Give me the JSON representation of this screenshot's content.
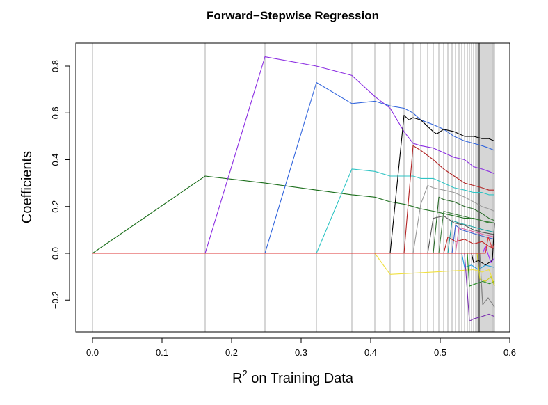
{
  "chart_data": {
    "type": "line",
    "title": "Forward−Stepwise Regression",
    "xlabel_base": "R",
    "xlabel_sup": "2",
    "xlabel_rest": " on Training Data",
    "ylabel": "Coefficients",
    "xlim": [
      0.0,
      0.6
    ],
    "ylim": [
      -0.3,
      0.85
    ],
    "x_ticks": [
      0.0,
      0.1,
      0.2,
      0.3,
      0.4,
      0.5,
      0.6
    ],
    "x_tick_labels": [
      "0.0",
      "0.1",
      "0.2",
      "0.3",
      "0.4",
      "0.5",
      "0.6"
    ],
    "y_ticks": [
      -0.2,
      0.0,
      0.2,
      0.4,
      0.6,
      0.8
    ],
    "y_tick_labels": [
      "−0.2",
      "0.0",
      "0.2",
      "0.4",
      "0.6",
      "0.8"
    ],
    "grid": "vertical lines at each step R²",
    "step_r2": [
      0.0,
      0.162,
      0.248,
      0.322,
      0.373,
      0.406,
      0.428,
      0.448,
      0.461,
      0.472,
      0.482,
      0.49,
      0.498,
      0.505,
      0.511,
      0.517,
      0.522,
      0.527,
      0.531,
      0.535,
      0.539,
      0.542,
      0.545,
      0.548,
      0.551,
      0.553,
      0.555,
      0.557,
      0.559,
      0.561,
      0.563,
      0.565,
      0.567,
      0.569,
      0.571,
      0.573,
      0.575,
      0.576,
      0.577,
      0.578
    ],
    "dark_line_x": 0.556,
    "series": [
      {
        "color": "#1b6e1b",
        "x": [
          0.0,
          0.162,
          0.248,
          0.322,
          0.373,
          0.406,
          0.428,
          0.448,
          0.461,
          0.472,
          0.49,
          0.505,
          0.52,
          0.535,
          0.548,
          0.56,
          0.57,
          0.578
        ],
        "y": [
          0.0,
          0.33,
          0.3,
          0.27,
          0.25,
          0.24,
          0.22,
          0.21,
          0.2,
          0.19,
          0.18,
          0.17,
          0.16,
          0.15,
          0.15,
          0.14,
          0.13,
          0.13
        ]
      },
      {
        "color": "#8a2be2",
        "x": [
          0.0,
          0.162,
          0.248,
          0.322,
          0.373,
          0.406,
          0.428,
          0.448,
          0.461,
          0.472,
          0.49,
          0.505,
          0.52,
          0.535,
          0.548,
          0.56,
          0.57,
          0.578
        ],
        "y": [
          0.0,
          0.0,
          0.84,
          0.8,
          0.76,
          0.67,
          0.62,
          0.52,
          0.47,
          0.46,
          0.45,
          0.43,
          0.41,
          0.4,
          0.37,
          0.36,
          0.35,
          0.34
        ]
      },
      {
        "color": "#3366dd",
        "x": [
          0.0,
          0.248,
          0.322,
          0.373,
          0.406,
          0.428,
          0.448,
          0.461,
          0.472,
          0.49,
          0.505,
          0.52,
          0.535,
          0.548,
          0.56,
          0.57,
          0.578
        ],
        "y": [
          0.0,
          0.0,
          0.73,
          0.64,
          0.65,
          0.63,
          0.62,
          0.6,
          0.57,
          0.55,
          0.53,
          0.5,
          0.48,
          0.47,
          0.46,
          0.45,
          0.44
        ]
      },
      {
        "color": "#2ec4c4",
        "x": [
          0.0,
          0.322,
          0.373,
          0.406,
          0.428,
          0.448,
          0.461,
          0.472,
          0.49,
          0.505,
          0.52,
          0.535,
          0.548,
          0.56,
          0.57,
          0.578
        ],
        "y": [
          0.0,
          0.0,
          0.36,
          0.35,
          0.33,
          0.33,
          0.33,
          0.32,
          0.32,
          0.3,
          0.28,
          0.27,
          0.26,
          0.26,
          0.25,
          0.25
        ]
      },
      {
        "color": "#000000",
        "x": [
          0.0,
          0.428,
          0.448,
          0.455,
          0.461,
          0.472,
          0.49,
          0.495,
          0.505,
          0.52,
          0.535,
          0.548,
          0.56,
          0.57,
          0.578
        ],
        "y": [
          0.0,
          0.0,
          0.59,
          0.57,
          0.58,
          0.57,
          0.52,
          0.51,
          0.53,
          0.52,
          0.5,
          0.5,
          0.49,
          0.49,
          0.48
        ]
      },
      {
        "color": "#b22222",
        "x": [
          0.0,
          0.448,
          0.461,
          0.472,
          0.49,
          0.505,
          0.52,
          0.535,
          0.548,
          0.56,
          0.57,
          0.578
        ],
        "y": [
          0.0,
          0.0,
          0.46,
          0.44,
          0.4,
          0.36,
          0.33,
          0.3,
          0.29,
          0.28,
          0.27,
          0.27
        ]
      },
      {
        "color": "#f0e040",
        "x": [
          0.0,
          0.406,
          0.428,
          0.461,
          0.49,
          0.52,
          0.548,
          0.56,
          0.57,
          0.578
        ],
        "y": [
          0.0,
          0.0,
          -0.09,
          -0.085,
          -0.08,
          -0.075,
          -0.07,
          -0.08,
          -0.07,
          -0.13
        ]
      },
      {
        "color": "#9a9a9a",
        "x": [
          0.0,
          0.461,
          0.472,
          0.482,
          0.49,
          0.505,
          0.52,
          0.535,
          0.548,
          0.56,
          0.57,
          0.578
        ],
        "y": [
          0.0,
          0.0,
          0.21,
          0.29,
          0.28,
          0.27,
          0.26,
          0.24,
          0.22,
          0.2,
          0.19,
          0.18
        ]
      },
      {
        "color": "#2a6a2a",
        "x": [
          0.0,
          0.49,
          0.498,
          0.505,
          0.52,
          0.535,
          0.548,
          0.56,
          0.57,
          0.578
        ],
        "y": [
          0.0,
          0.0,
          0.24,
          0.23,
          0.22,
          0.2,
          0.19,
          0.17,
          0.15,
          0.14
        ]
      },
      {
        "color": "#7a2fb0",
        "x": [
          0.0,
          0.535,
          0.542,
          0.548,
          0.56,
          0.57,
          0.578
        ],
        "y": [
          0.0,
          0.0,
          -0.29,
          -0.28,
          -0.27,
          -0.26,
          -0.27
        ]
      },
      {
        "color": "#3a5fd0",
        "x": [
          0.0,
          0.517,
          0.522,
          0.531,
          0.542,
          0.553,
          0.565,
          0.578
        ],
        "y": [
          0.0,
          0.0,
          0.12,
          0.1,
          0.09,
          0.08,
          0.07,
          0.06
        ]
      },
      {
        "color": "#c02020",
        "x": [
          0.0,
          0.505,
          0.511,
          0.522,
          0.535,
          0.548,
          0.56,
          0.57,
          0.578
        ],
        "y": [
          0.0,
          0.0,
          0.07,
          0.05,
          0.06,
          0.04,
          0.05,
          0.03,
          0.02
        ]
      },
      {
        "color": "#1aa0a0",
        "x": [
          0.0,
          0.511,
          0.517,
          0.527,
          0.539,
          0.551,
          0.563,
          0.578
        ],
        "y": [
          0.0,
          0.0,
          0.14,
          0.13,
          0.12,
          0.11,
          0.1,
          0.09
        ]
      },
      {
        "color": "#e060a0",
        "x": [
          0.0,
          0.522,
          0.527,
          0.539,
          0.551,
          0.563,
          0.578
        ],
        "y": [
          0.0,
          0.0,
          0.11,
          0.1,
          0.09,
          0.08,
          0.07
        ]
      },
      {
        "color": "#408040",
        "x": [
          0.0,
          0.498,
          0.505,
          0.517,
          0.531,
          0.545,
          0.559,
          0.578
        ],
        "y": [
          0.0,
          0.0,
          0.18,
          0.17,
          0.16,
          0.15,
          0.14,
          0.13
        ]
      },
      {
        "color": "#555555",
        "x": [
          0.0,
          0.482,
          0.49,
          0.505,
          0.52,
          0.535,
          0.548,
          0.56,
          0.578
        ],
        "y": [
          0.0,
          0.0,
          0.15,
          0.16,
          0.13,
          0.12,
          0.1,
          0.09,
          0.08
        ]
      },
      {
        "color": "#20a0e0",
        "x": [
          0.0,
          0.531,
          0.535,
          0.545,
          0.555,
          0.565,
          0.578
        ],
        "y": [
          0.0,
          0.0,
          -0.06,
          -0.05,
          -0.07,
          -0.05,
          -0.06
        ]
      },
      {
        "color": "#228b22",
        "x": [
          0.0,
          0.539,
          0.542,
          0.551,
          0.561,
          0.571,
          0.578
        ],
        "y": [
          0.0,
          0.0,
          -0.14,
          -0.13,
          -0.12,
          -0.13,
          -0.12
        ]
      },
      {
        "color": "#000000",
        "x": [
          0.0,
          0.545,
          0.548,
          0.555,
          0.565,
          0.575,
          0.578
        ],
        "y": [
          0.0,
          0.0,
          -0.04,
          -0.03,
          -0.05,
          -0.03,
          0.13
        ]
      },
      {
        "color": "#cccc20",
        "x": [
          0.0,
          0.553,
          0.557,
          0.565,
          0.573,
          0.578
        ],
        "y": [
          0.0,
          0.0,
          -0.11,
          -0.12,
          -0.1,
          -0.14
        ]
      },
      {
        "color": "#808080",
        "x": [
          0.0,
          0.557,
          0.561,
          0.569,
          0.578
        ],
        "y": [
          0.0,
          0.0,
          -0.22,
          -0.19,
          -0.23
        ]
      },
      {
        "color": "#9b30ff",
        "x": [
          0.0,
          0.561,
          0.565,
          0.573,
          0.578
        ],
        "y": [
          0.0,
          0.0,
          0.03,
          -0.04,
          -0.02
        ]
      },
      {
        "color": "#dd3333",
        "x": [
          0.0,
          0.565,
          0.569,
          0.575,
          0.578
        ],
        "y": [
          0.0,
          0.0,
          0.07,
          0.02,
          0.04
        ]
      }
    ]
  }
}
